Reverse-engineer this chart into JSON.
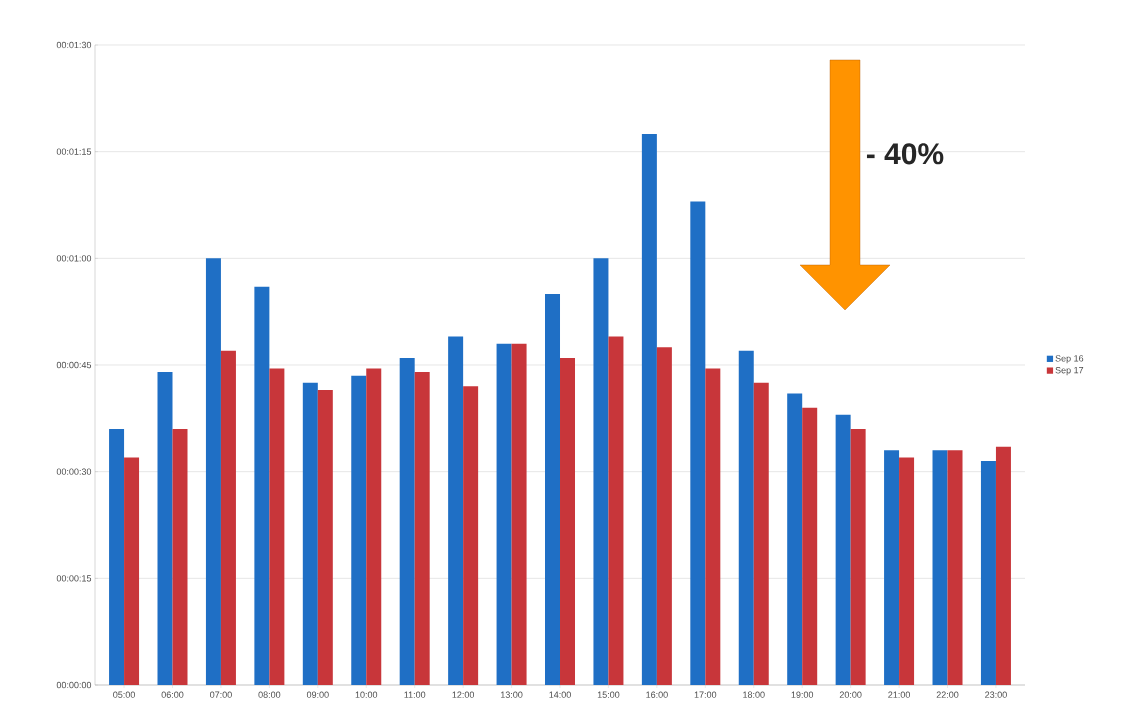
{
  "chart_data": {
    "type": "bar",
    "categories": [
      "05:00",
      "06:00",
      "07:00",
      "08:00",
      "09:00",
      "10:00",
      "11:00",
      "12:00",
      "13:00",
      "14:00",
      "15:00",
      "16:00",
      "17:00",
      "18:00",
      "19:00",
      "20:00",
      "21:00",
      "22:00",
      "23:00"
    ],
    "series": [
      {
        "name": "Sep 16",
        "color": "#1f6fc5",
        "values": [
          36,
          44,
          60,
          56,
          42.5,
          43.5,
          46,
          49,
          48,
          55,
          60,
          77.5,
          68,
          47,
          41,
          38,
          33,
          33,
          31.5
        ]
      },
      {
        "name": "Sep 17",
        "color": "#c8363a",
        "values": [
          32,
          36,
          47,
          44.5,
          41.5,
          44.5,
          44,
          42,
          48,
          46,
          49,
          47.5,
          44.5,
          42.5,
          39,
          36,
          32,
          33,
          33.5
        ]
      }
    ],
    "ylim": [
      0,
      90
    ],
    "yticks": [
      {
        "value": 0,
        "label": "00:00:00"
      },
      {
        "value": 15,
        "label": "00:00:15"
      },
      {
        "value": 30,
        "label": "00:00:30"
      },
      {
        "value": 45,
        "label": "00:00:45"
      },
      {
        "value": 60,
        "label": "00:01:00"
      },
      {
        "value": 75,
        "label": "00:01:15"
      },
      {
        "value": 90,
        "label": "00:01:30"
      }
    ],
    "grid": "y",
    "legend": "right",
    "annotations": [
      "- 40%"
    ]
  }
}
